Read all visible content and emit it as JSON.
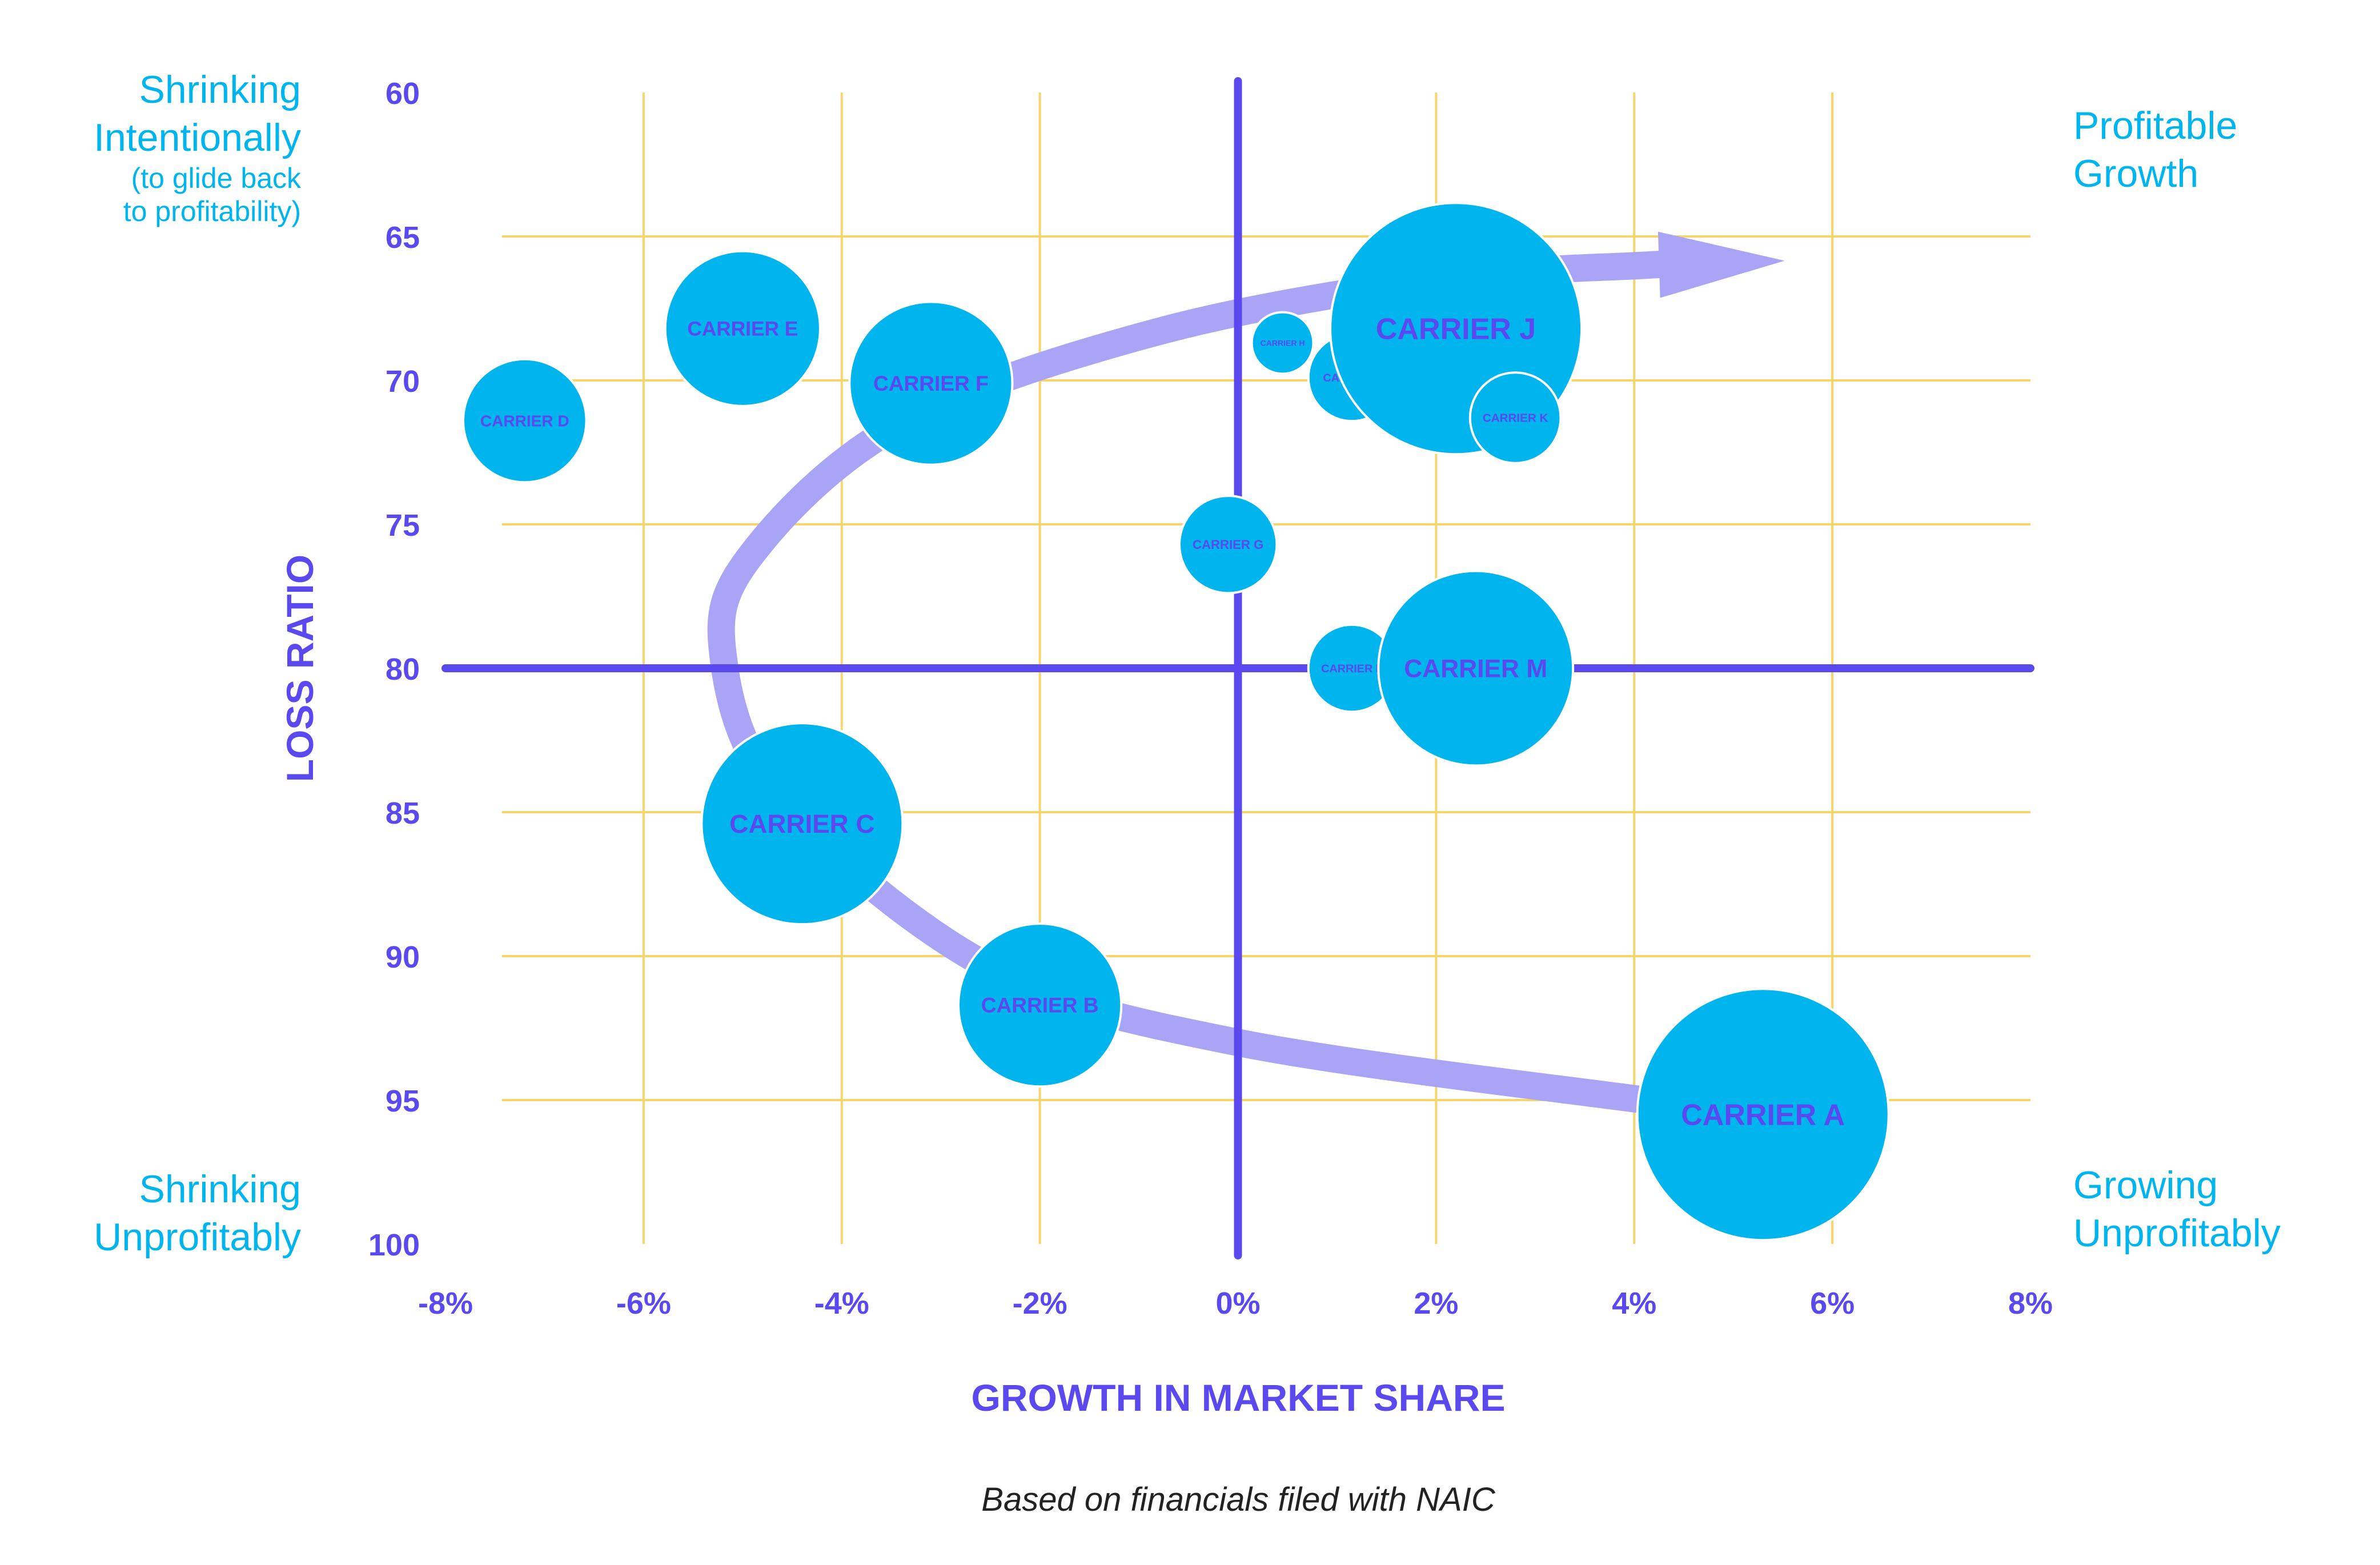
{
  "chart_data": {
    "type": "scatter",
    "subtype": "bubble",
    "xlabel": "GROWTH IN MARKET SHARE",
    "ylabel": "LOSS RATIO",
    "xlim": [
      -8,
      8
    ],
    "ylim": [
      60,
      100
    ],
    "y_inverted": true,
    "x_ticks": [
      "-8%",
      "-6%",
      "-4%",
      "-2%",
      "0%",
      "2%",
      "4%",
      "6%",
      "8%"
    ],
    "y_ticks": [
      "60",
      "65",
      "70",
      "75",
      "80",
      "85",
      "90",
      "95",
      "100"
    ],
    "grid": true,
    "quadrant_dividers": {
      "x": 0,
      "y": 80
    },
    "points": [
      {
        "label": "CARRIER A",
        "x": 5.3,
        "y": 95.5,
        "size": 5.0
      },
      {
        "label": "CARRIER B",
        "x": -2.0,
        "y": 91.7,
        "size": 2.1
      },
      {
        "label": "CARRIER C",
        "x": -4.4,
        "y": 85.4,
        "size": 3.2
      },
      {
        "label": "CARRIER D",
        "x": -7.2,
        "y": 71.4,
        "size": 1.2
      },
      {
        "label": "CARRIER E",
        "x": -5.0,
        "y": 68.2,
        "size": 1.9
      },
      {
        "label": "CARRIER F",
        "x": -3.1,
        "y": 70.1,
        "size": 2.1
      },
      {
        "label": "CARRIER G",
        "x": -0.1,
        "y": 75.7,
        "size": 0.75
      },
      {
        "label": "CARRIER H",
        "x": 0.45,
        "y": 68.7,
        "size": 0.3
      },
      {
        "label": "CARRIER I",
        "x": 1.15,
        "y": 69.9,
        "size": 0.6
      },
      {
        "label": "CARRIER J",
        "x": 2.2,
        "y": 68.2,
        "size": 5.0
      },
      {
        "label": "CARRIER K",
        "x": 2.8,
        "y": 71.3,
        "size": 0.65
      },
      {
        "label": "CARRIER L",
        "x": 1.15,
        "y": 80.0,
        "size": 0.6
      },
      {
        "label": "CARRIER M",
        "x": 2.4,
        "y": 80.0,
        "size": 3.0
      }
    ],
    "trend_arrow": {
      "points": [
        [
          4.1,
          95.0
        ],
        [
          0.0,
          93.0
        ],
        [
          -2.5,
          90.4
        ],
        [
          -4.6,
          84.6
        ],
        [
          -5.2,
          79.5
        ],
        [
          -4.9,
          76.0
        ],
        [
          -3.4,
          71.5
        ],
        [
          -0.8,
          68.3
        ],
        [
          2.0,
          66.5
        ],
        [
          4.1,
          66.0
        ],
        [
          5.0,
          65.9
        ]
      ],
      "color": "#aaa4f7"
    },
    "colors": {
      "bubble": "#00b5ee",
      "bubble_stroke": "#ffffff",
      "axis_text": "#5a49ee",
      "grid": "#f8d56a",
      "divider": "#5a49ee"
    }
  },
  "quadrants": {
    "top_left": "Shrinking\nIntentionally",
    "top_left_note": "(to glide back\nto profitability)",
    "top_right": "Profitable\nGrowth",
    "bottom_left": "Shrinking\nUnprofitably",
    "bottom_right": "Growing\nUnprofitably"
  },
  "footnote": "Based on financials filed with NAIC"
}
